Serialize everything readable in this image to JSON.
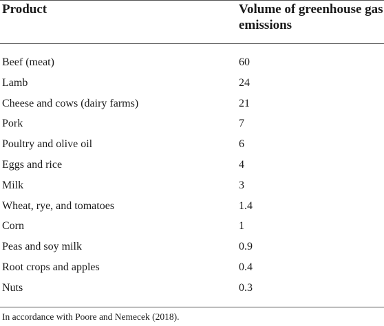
{
  "table": {
    "headers": {
      "product": "Product",
      "volume": "Volume of greenhouse gas emissions"
    },
    "rows": [
      {
        "product": "Beef (meat)",
        "value": "60"
      },
      {
        "product": "Lamb",
        "value": "24"
      },
      {
        "product": "Cheese and cows (dairy farms)",
        "value": "21"
      },
      {
        "product": "Pork",
        "value": "7"
      },
      {
        "product": "Poultry and olive oil",
        "value": "6"
      },
      {
        "product": "Eggs and rice",
        "value": "4"
      },
      {
        "product": "Milk",
        "value": "3"
      },
      {
        "product": "Wheat, rye, and tomatoes",
        "value": "1.4"
      },
      {
        "product": "Corn",
        "value": "1"
      },
      {
        "product": "Peas and soy milk",
        "value": "0.9"
      },
      {
        "product": "Root crops and apples",
        "value": "0.4"
      },
      {
        "product": "Nuts",
        "value": "0.3"
      }
    ],
    "footnote": "In accordance with Poore and Nemecek (2018)."
  }
}
